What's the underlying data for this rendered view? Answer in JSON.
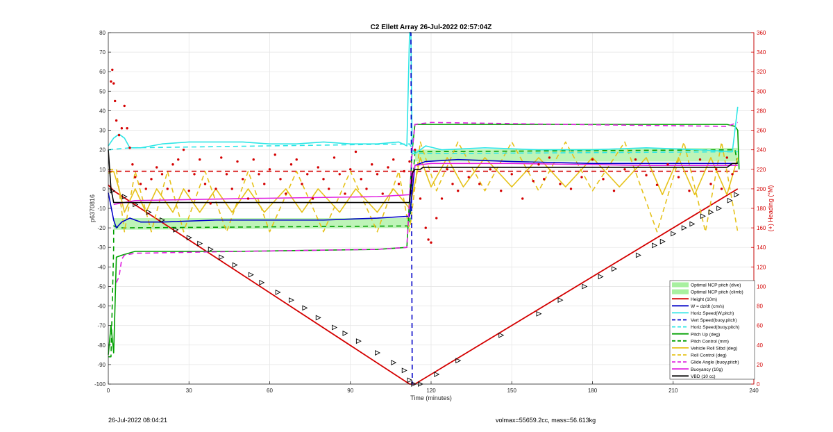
{
  "footer": {
    "left": "26-Jul-2022 08:04:21",
    "right": "volmax=55659.2cc, mass=56.613kg"
  },
  "chart_data": {
    "type": "line",
    "title": "C2 Ellett Array 26-Jul-2022 02:57:04Z",
    "xlabel": "Time (minutes)",
    "ylabel": "p6370816",
    "ylabel_right": "(+) Heading (°M)",
    "xlim": [
      0,
      240
    ],
    "ylim": [
      -100,
      80
    ],
    "ylim_right": [
      0,
      360
    ],
    "xticks": [
      0,
      30,
      60,
      90,
      120,
      150,
      180,
      210,
      240
    ],
    "yticks": [
      -100,
      -90,
      -80,
      -70,
      -60,
      -50,
      -40,
      -30,
      -20,
      -10,
      0,
      10,
      20,
      30,
      40,
      50,
      60,
      70,
      80
    ],
    "yticks_right": [
      0,
      20,
      40,
      60,
      80,
      100,
      120,
      140,
      160,
      180,
      200,
      220,
      240,
      260,
      280,
      300,
      320,
      340,
      360
    ],
    "grid": true,
    "legend_position": "bottom-right",
    "colors": {
      "red": "#d40000",
      "blue": "#0000c8",
      "cyan": "#2ee6e6",
      "green": "#00a000",
      "yellow": "#e6c21a",
      "magenta": "#e020e0",
      "black": "#000000",
      "ncp_fill": "#a8f0a0",
      "right_axis": "#d40000"
    },
    "bands": [
      {
        "name": "Optimal NCP pitch (dive)",
        "x": [
          2,
          112
        ],
        "lower": [
          -21,
          -20
        ],
        "upper": [
          -15,
          -15
        ]
      },
      {
        "name": "Optimal NCP pitch (climb)",
        "x": [
          114,
          234
        ],
        "lower": [
          14,
          14
        ],
        "upper": [
          20,
          21
        ]
      }
    ],
    "series": [
      {
        "name": "Height (10m)",
        "color": "red",
        "style": "solid",
        "x": [
          0,
          2,
          112,
          114,
          234
        ],
        "y": [
          2,
          -1,
          -100,
          -100,
          0
        ]
      },
      {
        "name": "W = dz/dt (cm/s)",
        "color": "blue",
        "style": "solid",
        "x": [
          0,
          2,
          3,
          5,
          8,
          12,
          20,
          40,
          60,
          80,
          100,
          112,
          114,
          118,
          130,
          150,
          180,
          210,
          232,
          234
        ],
        "y": [
          -2,
          -16,
          -20,
          -17,
          -15,
          -17,
          -17,
          -16,
          -16,
          -16,
          -15,
          -14,
          12,
          14,
          15,
          14,
          13,
          13,
          13,
          13
        ]
      },
      {
        "name": "Horiz Speed(W,pitch)",
        "color": "cyan",
        "style": "solid",
        "x": [
          0,
          2,
          4,
          6,
          8,
          12,
          20,
          30,
          40,
          50,
          60,
          70,
          80,
          90,
          100,
          108,
          111,
          112,
          112.5,
          113,
          114,
          118,
          124,
          140,
          160,
          180,
          200,
          220,
          232,
          234
        ],
        "y": [
          22,
          26,
          28,
          26,
          21,
          21,
          23,
          24,
          24,
          24,
          23,
          23,
          24,
          23,
          23,
          24,
          22,
          80,
          80,
          18,
          18,
          22,
          20,
          21,
          20,
          20,
          21,
          20,
          19,
          42
        ]
      },
      {
        "name": "Vert Speed(buoy,pitch)",
        "color": "blue",
        "style": "dashed",
        "x": [
          112,
          112.5,
          113,
          113.5
        ],
        "y": [
          80,
          80,
          -100,
          -100
        ]
      },
      {
        "name": "Horiz Speed(buoy,pitch)",
        "color": "cyan",
        "style": "dashed",
        "x": [
          0,
          8,
          112,
          114,
          234
        ],
        "y": [
          20,
          21,
          23,
          18,
          19
        ]
      },
      {
        "name": "Pitch Up (deg)",
        "color": "green",
        "style": "solid",
        "x": [
          0,
          1,
          2,
          2.5,
          3,
          5,
          10,
          50,
          100,
          111,
          113,
          114,
          120,
          170,
          230,
          233,
          234,
          234.5
        ],
        "y": [
          -85,
          -70,
          -84,
          -60,
          -35,
          -34,
          -32,
          -32,
          -31,
          -30,
          20,
          33,
          33,
          33,
          33,
          32,
          30,
          10
        ]
      },
      {
        "name": "Pitch Control (mm)",
        "color": "green",
        "style": "dashed",
        "x": [
          0,
          1,
          2,
          2,
          4,
          112,
          114,
          233,
          234
        ],
        "y": [
          -86,
          -86,
          -30,
          -19,
          -20,
          -19,
          19,
          20,
          12
        ]
      },
      {
        "name": "Vehicle Roll Stbd (deg)",
        "color": "yellow",
        "style": "solid",
        "x": [
          0,
          2,
          4,
          6,
          10,
          14,
          18,
          24,
          28,
          34,
          40,
          46,
          52,
          58,
          66,
          72,
          78,
          86,
          92,
          100,
          106,
          112,
          116,
          120,
          126,
          132,
          140,
          150,
          160,
          170,
          180,
          190,
          200,
          206,
          212,
          218,
          224,
          230,
          234
        ],
        "y": [
          8,
          9,
          0,
          -12,
          0,
          -12,
          0,
          -12,
          0,
          -12,
          0,
          -12,
          0,
          -12,
          0,
          -12,
          0,
          -12,
          0,
          -12,
          0,
          -10,
          16,
          1,
          16,
          1,
          16,
          1,
          16,
          1,
          16,
          1,
          16,
          -3,
          16,
          -3,
          16,
          -3,
          16
        ]
      },
      {
        "name": "Roll Control (deg)",
        "color": "yellow",
        "style": "dashed",
        "x": [
          0,
          3,
          6,
          10,
          16,
          22,
          28,
          36,
          44,
          52,
          60,
          70,
          80,
          90,
          100,
          108,
          112,
          116,
          122,
          130,
          140,
          150,
          160,
          170,
          180,
          192,
          204,
          214,
          222,
          228,
          234
        ],
        "y": [
          10,
          10,
          -22,
          9,
          -22,
          9,
          -22,
          9,
          -22,
          9,
          -22,
          9,
          -22,
          9,
          -22,
          9,
          -22,
          24,
          -1,
          24,
          -1,
          24,
          -1,
          24,
          -1,
          24,
          -22,
          24,
          -22,
          24,
          -22
        ]
      },
      {
        "name": "Glide Angle (buoy,pitch)",
        "color": "magenta",
        "style": "dashed",
        "x": [
          3,
          4,
          5,
          6,
          10,
          50,
          100,
          111,
          113,
          114,
          120,
          170,
          230,
          234
        ],
        "y": [
          -48,
          -45,
          -36,
          -34,
          -33,
          -32,
          -31,
          -30,
          20,
          33,
          34,
          33,
          32,
          34
        ]
      },
      {
        "name": "Buoyancy (10g)",
        "color": "magenta",
        "style": "solid",
        "x": [
          2,
          10,
          50,
          100,
          112,
          114,
          120,
          150,
          200,
          234
        ],
        "y": [
          -8,
          -6,
          -5,
          -4,
          -3,
          12,
          13,
          13,
          12,
          12
        ]
      },
      {
        "name": "VBD (10 cc)",
        "color": "black",
        "style": "solid",
        "x": [
          0,
          1,
          2,
          60,
          112,
          113,
          114,
          116,
          117,
          150,
          200,
          230,
          232,
          234
        ],
        "y": [
          20,
          0,
          -7,
          -7,
          -7,
          8,
          10,
          10,
          11,
          11,
          11,
          11,
          13,
          13
        ]
      }
    ],
    "heading_data": {
      "name": "(+) Heading (°M)",
      "color": "red",
      "marker": "dot",
      "target_line": {
        "x": [
          0,
          234
        ],
        "y": [
          218,
          218
        ],
        "style": "dashed"
      },
      "x": [
        1,
        1.5,
        2,
        2.5,
        3,
        4,
        5,
        6,
        7,
        8,
        9,
        10,
        12,
        14,
        16,
        18,
        20,
        22,
        24,
        26,
        28,
        30,
        32,
        34,
        36,
        38,
        40,
        42,
        44,
        46,
        48,
        50,
        52,
        54,
        56,
        58,
        60,
        62,
        64,
        66,
        68,
        70,
        72,
        74,
        76,
        78,
        80,
        82,
        84,
        86,
        88,
        90,
        92,
        94,
        96,
        98,
        100,
        102,
        104,
        106,
        108,
        110,
        112,
        114,
        116,
        118,
        119,
        120,
        122,
        124,
        126,
        128,
        130,
        134,
        138,
        142,
        146,
        150,
        154,
        158,
        160,
        162,
        164,
        168,
        172,
        176,
        180,
        184,
        188,
        192,
        196,
        200,
        204,
        208,
        212,
        216,
        220,
        224,
        226,
        228,
        230,
        232
      ],
      "y": [
        310,
        322,
        308,
        290,
        270,
        255,
        262,
        285,
        262,
        242,
        225,
        212,
        205,
        200,
        210,
        222,
        215,
        200,
        225,
        230,
        240,
        198,
        215,
        230,
        205,
        185,
        200,
        232,
        215,
        200,
        228,
        210,
        190,
        230,
        215,
        205,
        220,
        235,
        210,
        195,
        225,
        230,
        205,
        215,
        190,
        222,
        210,
        200,
        232,
        215,
        195,
        220,
        238,
        210,
        200,
        225,
        215,
        195,
        222,
        230,
        205,
        218,
        228,
        240,
        190,
        160,
        148,
        145,
        170,
        190,
        220,
        205,
        198,
        212,
        205,
        220,
        198,
        215,
        190,
        208,
        225,
        210,
        232,
        205,
        200,
        212,
        230,
        210,
        198,
        220,
        230,
        214,
        204,
        225,
        212,
        198,
        230,
        205,
        220,
        200,
        232,
        215
      ]
    },
    "direction_markers": {
      "color": "black",
      "x": [
        1.5,
        6,
        10,
        15,
        20,
        25,
        30,
        34,
        38,
        42,
        47,
        53,
        57,
        63,
        68,
        73,
        78,
        84,
        88,
        93,
        100,
        106,
        110,
        112,
        113.5,
        116,
        122,
        130,
        146,
        160,
        168,
        177,
        183,
        188,
        197,
        203,
        206,
        210,
        214,
        217,
        221,
        224,
        227,
        231,
        233.5
      ],
      "y": [
        -1,
        -4,
        -8,
        -12,
        -16,
        -21,
        -25,
        -28,
        -31,
        -35,
        -39,
        -44,
        -48,
        -53,
        -57,
        -61,
        -66,
        -71,
        -74,
        -78,
        -84,
        -89,
        -93,
        -98,
        -100,
        -100,
        -95,
        -88,
        -75,
        -64,
        -57,
        -50,
        -45,
        -41,
        -34,
        -29,
        -27,
        -23,
        -20,
        -18,
        -14,
        -12,
        -10,
        -6,
        -3
      ]
    }
  }
}
